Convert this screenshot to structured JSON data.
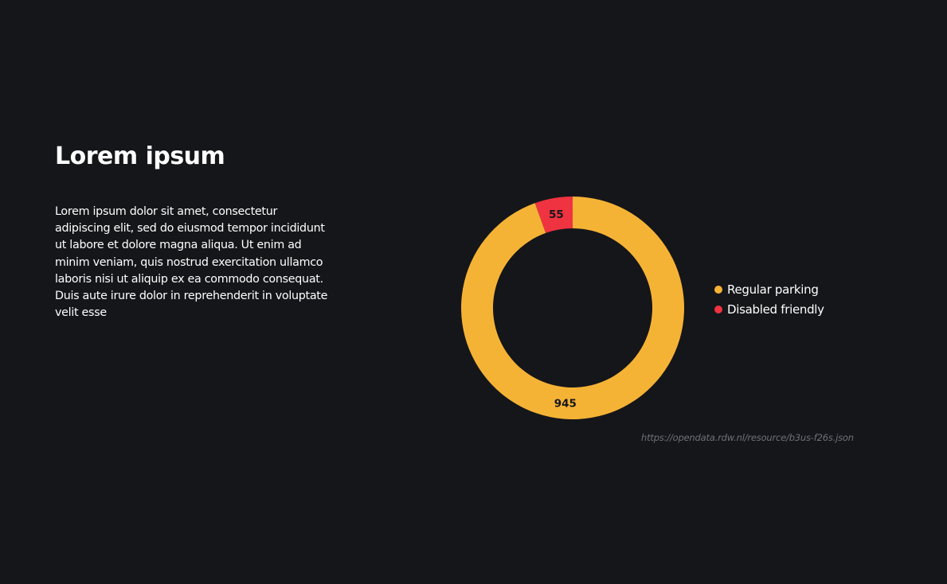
{
  "heading": "Lorem ipsum",
  "description": "Lorem ipsum dolor sit amet, consectetur adipiscing elit, sed do eiusmod tempor incididunt ut labore et dolore magna aliqua. Ut enim ad minim veniam, quis nostrud exercitation ullamco laboris nisi ut aliquip ex ea commodo consequat. Duis aute irure dolor in reprehenderit in voluptate velit esse",
  "source": "https://opendata.rdw.nl/resource/b3us-f26s.json",
  "chart_data": {
    "type": "pie",
    "donut": true,
    "categories": [
      "Regular parking",
      "Disabled friendly"
    ],
    "values": [
      945,
      55
    ],
    "data_labels": [
      "945",
      "55"
    ],
    "colors": [
      "#f5b335",
      "#ef3340"
    ],
    "legend_position": "right"
  }
}
